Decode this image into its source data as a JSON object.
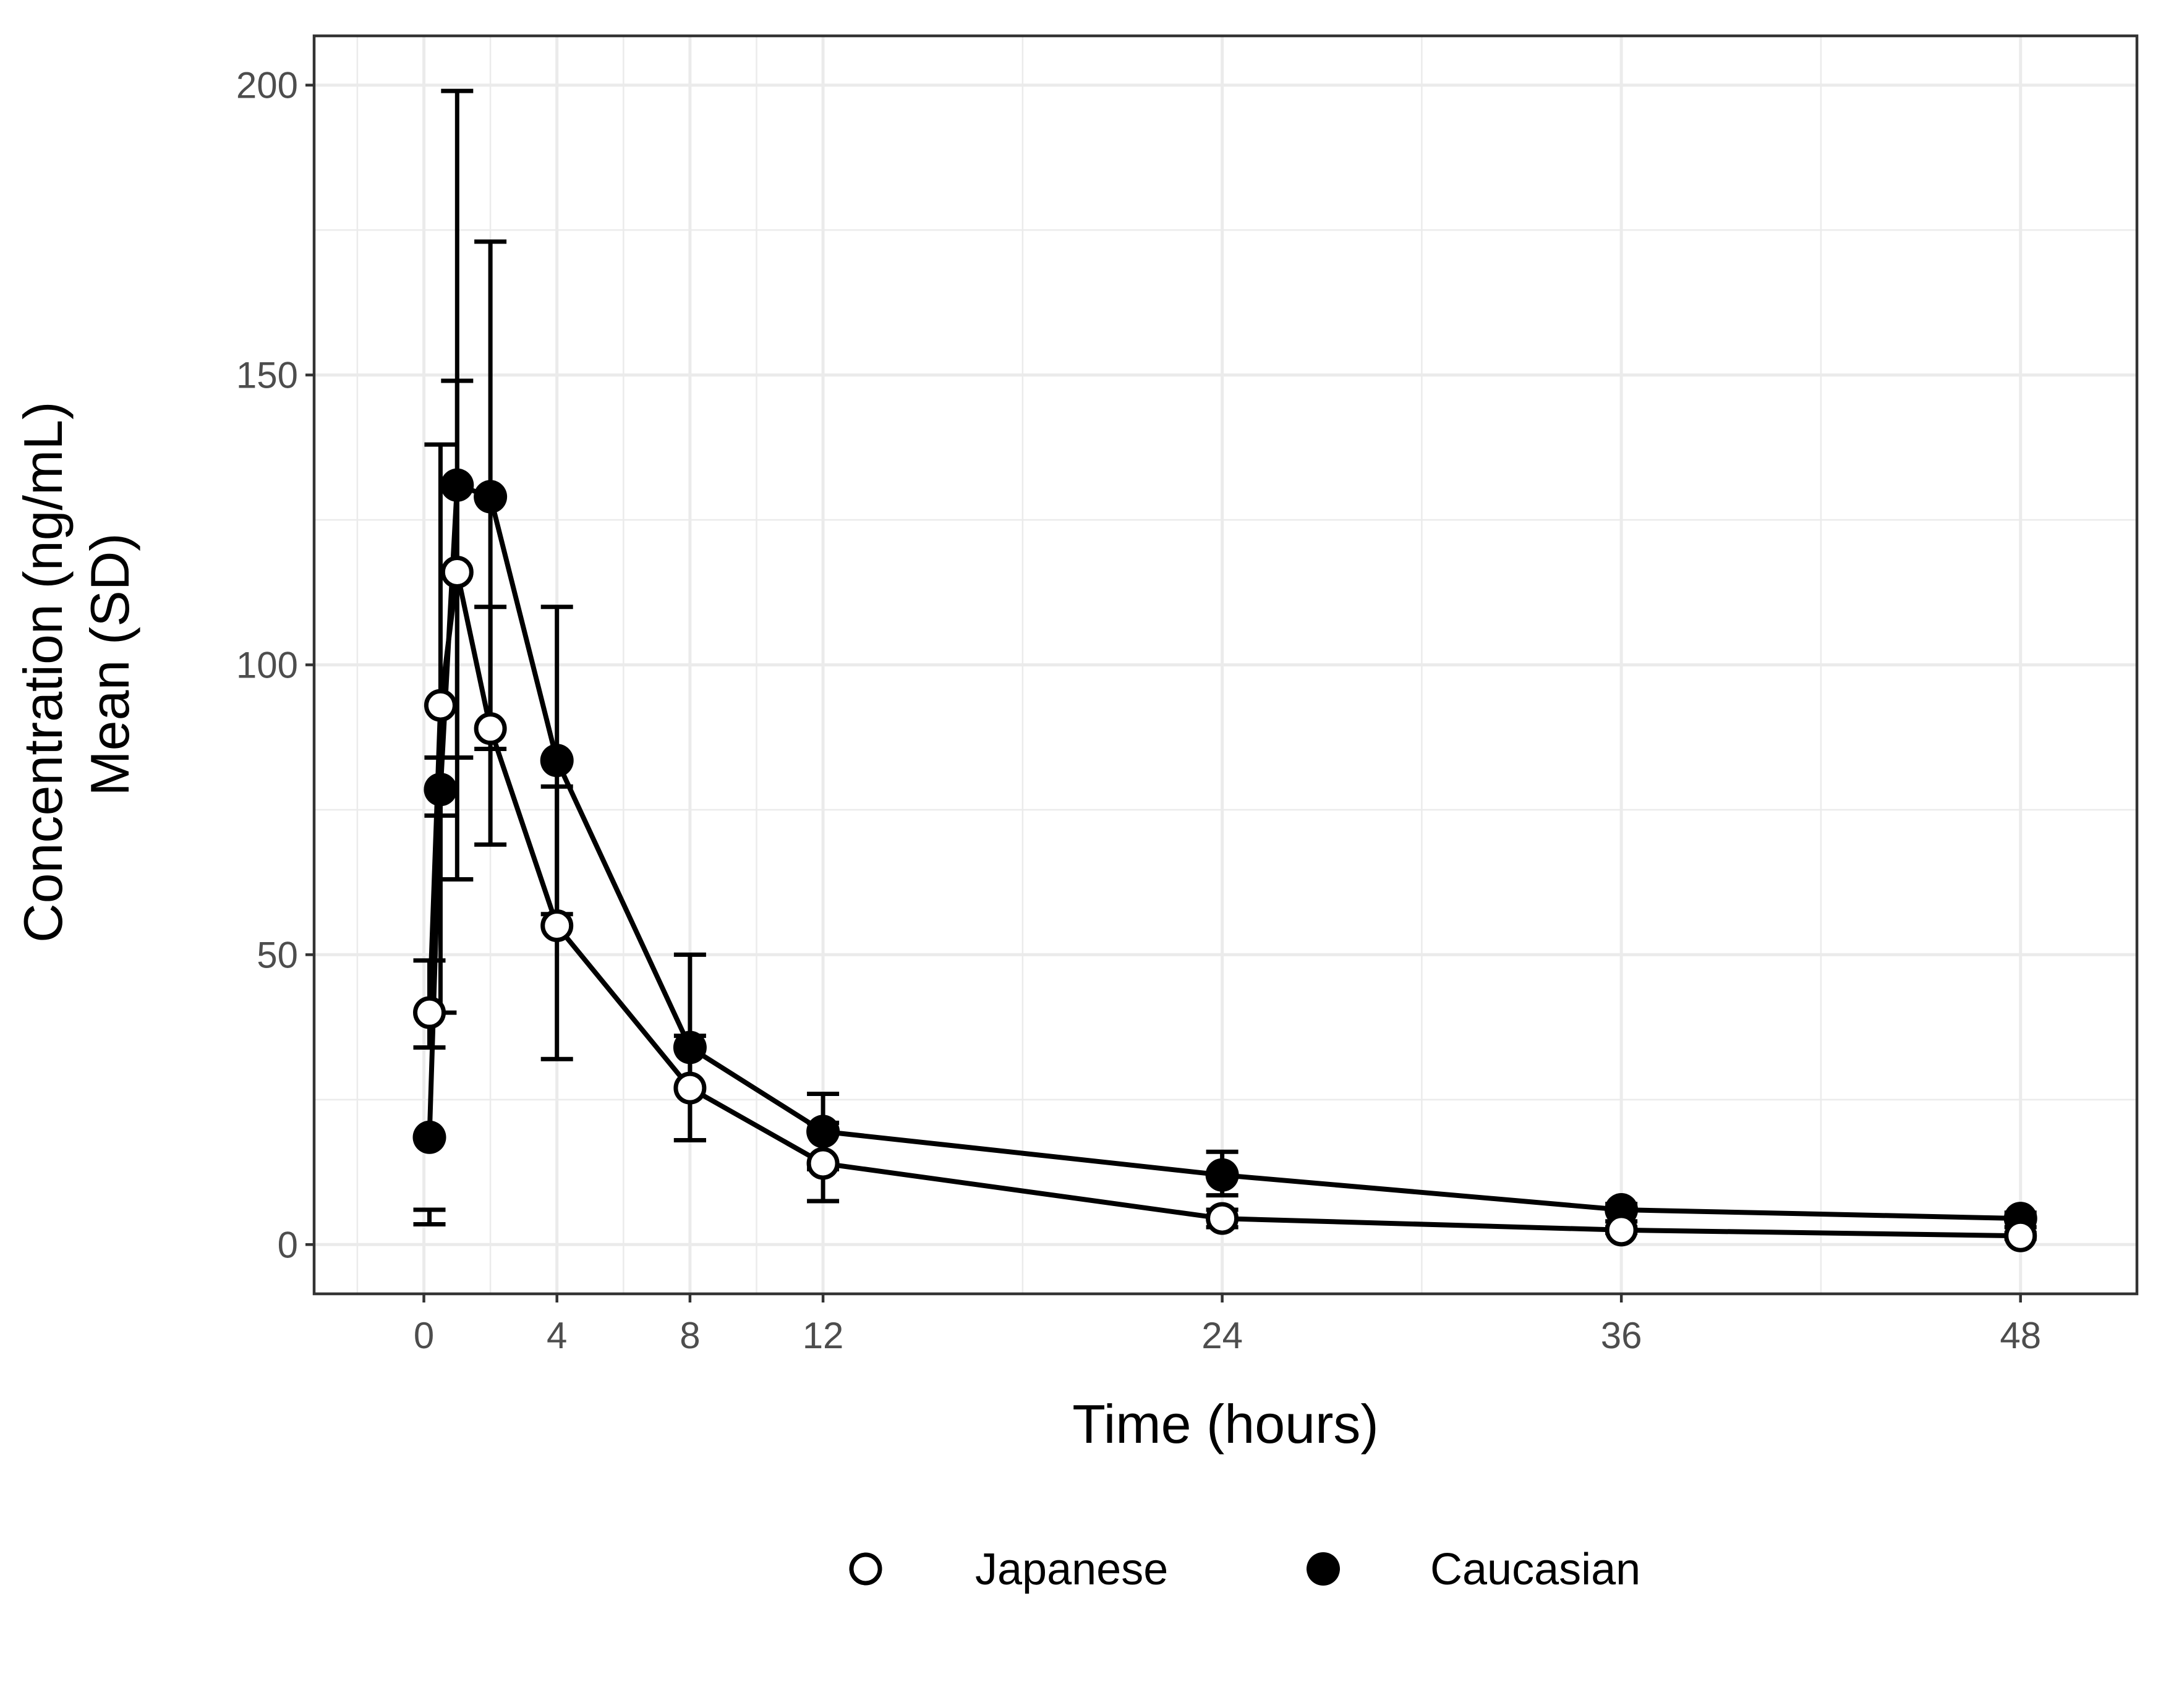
{
  "chart_data": {
    "type": "line",
    "title": "",
    "xlabel": "Time (hours)",
    "ylabel_lines": [
      "Concentration (ng/mL)",
      "Mean (SD)"
    ],
    "x_ticks": [
      0,
      4,
      8,
      12,
      24,
      36,
      48
    ],
    "y_ticks": [
      0,
      50,
      100,
      150,
      200
    ],
    "xlim": [
      -3.3,
      51.5
    ],
    "ylim": [
      -8.5,
      208.5
    ],
    "grid": true,
    "legend_position": "bottom",
    "series": [
      {
        "name": "Japanese",
        "marker": "open-circle",
        "x": [
          0.167,
          0.5,
          1,
          2,
          4,
          8,
          12,
          24,
          36,
          48
        ],
        "mean": [
          40,
          93,
          116,
          89,
          55,
          27,
          14,
          4.5,
          2.5,
          1.5
        ],
        "sd_lower": [
          34,
          74,
          84,
          69,
          32,
          18,
          7.5,
          3,
          2,
          1
        ],
        "sd_upper": [
          49,
          138,
          149,
          110,
          79,
          36,
          21,
          6,
          3,
          2
        ]
      },
      {
        "name": "Caucasian",
        "marker": "filled-circle",
        "x": [
          0.167,
          0.5,
          1,
          2,
          4,
          8,
          12,
          24,
          36,
          48
        ],
        "mean": [
          18.5,
          78.5,
          131,
          129,
          83.5,
          34,
          19.5,
          12,
          6,
          4.5
        ],
        "sd_lower": [
          3.5,
          40,
          63,
          85.5,
          57,
          18,
          13,
          8.5,
          4,
          3
        ],
        "sd_upper": [
          6,
          84,
          199,
          173,
          110,
          50,
          26,
          16,
          7,
          5.5
        ]
      }
    ]
  }
}
